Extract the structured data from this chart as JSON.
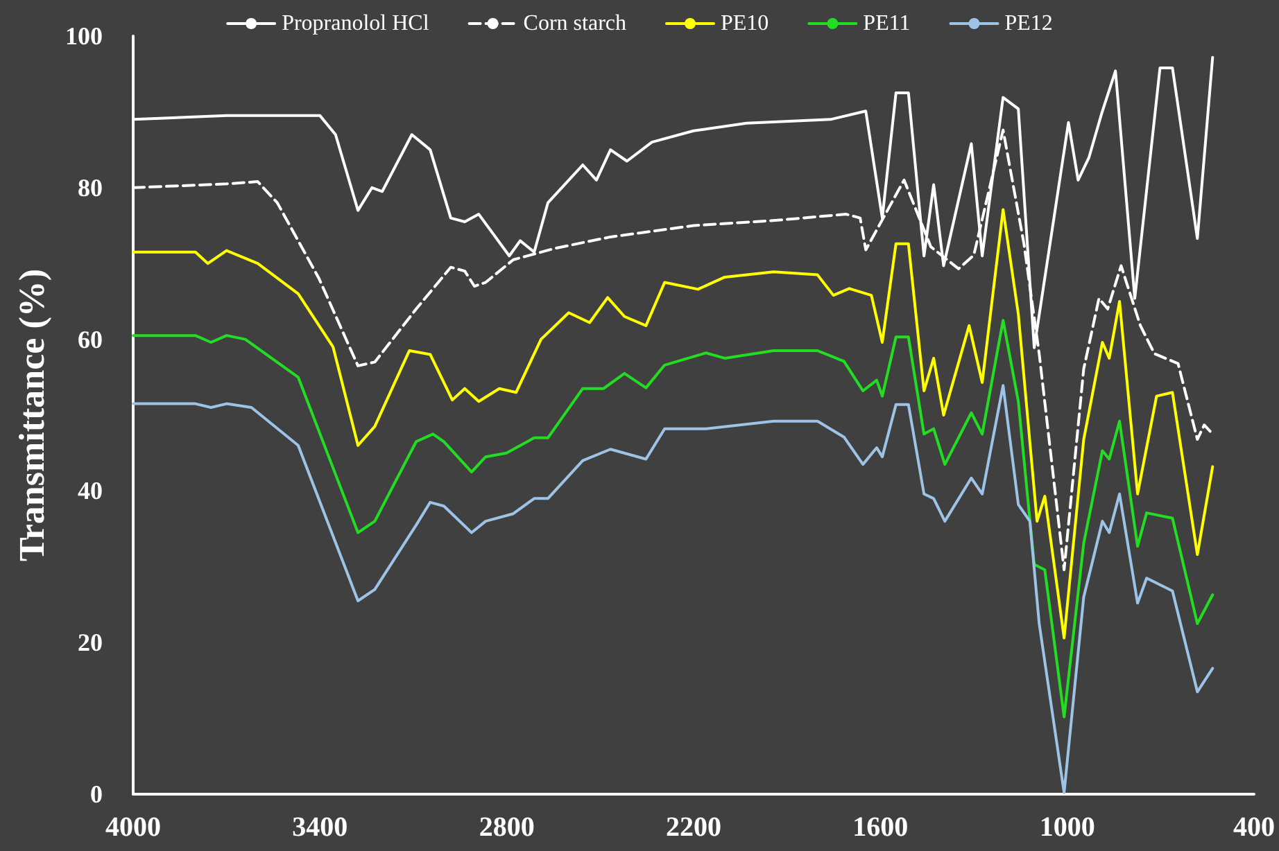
{
  "chart_data": {
    "type": "line",
    "ylabel": "Transmittance (%)",
    "xlim": [
      4000,
      400
    ],
    "xticks": [
      4000,
      3400,
      2800,
      2200,
      1600,
      1000,
      400
    ],
    "ylim": [
      0,
      100
    ],
    "yticks": [
      0,
      20,
      40,
      60,
      80,
      100
    ],
    "grid": false,
    "legend": "top",
    "marker": "none",
    "series": [
      {
        "name": "Propranolol HCl",
        "color": "#ffffff",
        "line_style": "solid",
        "x": [
          4000,
          3700,
          3400,
          3350,
          3278,
          3233,
          3200,
          3105,
          3046,
          2980,
          2935,
          2890,
          2792,
          2757,
          2712,
          2668,
          2556,
          2512,
          2467,
          2414,
          2334,
          2200,
          2030,
          1760,
          1647,
          1594,
          1550,
          1510,
          1460,
          1429,
          1397,
          1308,
          1273,
          1206,
          1157,
          1106,
          996,
          965,
          930,
          890,
          845,
          783,
          702,
          662,
          620,
          582,
          533
        ],
        "values": [
          89,
          89.5,
          89.5,
          87,
          77,
          80,
          79.5,
          87,
          85,
          76,
          75.5,
          76.5,
          71,
          73,
          71.5,
          78,
          83,
          81,
          85,
          83.5,
          86,
          87.5,
          88.5,
          89,
          90.1,
          76,
          92.5,
          92.5,
          71,
          80.4,
          69.7,
          85.8,
          71,
          91.9,
          90.4,
          58.9,
          88.6,
          81,
          84,
          89.7,
          95.4,
          65.4,
          95.8,
          95.8,
          84,
          73.3,
          97.2
        ]
      },
      {
        "name": "Corn starch",
        "color": "#ffffff",
        "line_style": "dashed",
        "x": [
          4000,
          3700,
          3600,
          3537,
          3403,
          3278,
          3224,
          3091,
          2980,
          2935,
          2904,
          2868,
          2779,
          2645,
          2467,
          2200,
          1932,
          1710,
          1665,
          1647,
          1524,
          1438,
          1349,
          1300,
          1206,
          1139,
          1090,
          1010,
          947,
          898,
          870,
          827,
          765,
          720,
          644,
          582,
          560,
          533
        ],
        "values": [
          80,
          80.5,
          80.8,
          78,
          68,
          56.5,
          57,
          64,
          69.5,
          69,
          67,
          67.5,
          70.5,
          72,
          73.5,
          75,
          75.7,
          76.5,
          76,
          71.8,
          81,
          72.2,
          69.3,
          71.1,
          87.6,
          72.6,
          58.1,
          29.6,
          56.1,
          65.4,
          64,
          69.7,
          61.8,
          58.1,
          56.8,
          46.8,
          48.7,
          47.5
        ]
      },
      {
        "name": "PE10",
        "color": "#ffff00",
        "line_style": "solid",
        "x": [
          4000,
          3800,
          3760,
          3700,
          3600,
          3470,
          3358,
          3278,
          3224,
          3113,
          3046,
          2975,
          2935,
          2890,
          2824,
          2770,
          2690,
          2601,
          2534,
          2476,
          2422,
          2353,
          2293,
          2186,
          2100,
          1943,
          1802,
          1751,
          1700,
          1629,
          1594,
          1550,
          1510,
          1460,
          1429,
          1397,
          1315,
          1273,
          1206,
          1157,
          1097,
          1072,
          1010,
          947,
          887,
          865,
          832,
          774,
          713,
          662,
          582,
          533
        ],
        "values": [
          71.5,
          71.5,
          70,
          71.7,
          70,
          66,
          59,
          46,
          48.5,
          58.5,
          58,
          52,
          53.5,
          51.8,
          53.5,
          53,
          60,
          63.5,
          62.2,
          65.5,
          63,
          61.8,
          67.5,
          66.6,
          68.2,
          68.9,
          68.5,
          65.8,
          66.7,
          65.8,
          59.6,
          72.6,
          72.6,
          53.2,
          57.5,
          50,
          61.8,
          54.3,
          77.1,
          63.3,
          36,
          39.3,
          20.6,
          46.8,
          59.6,
          57.5,
          65,
          39.6,
          52.5,
          53,
          31.6,
          43.2
        ]
      },
      {
        "name": "PE11",
        "color": "#22dd22",
        "line_style": "solid",
        "x": [
          4000,
          3800,
          3750,
          3700,
          3640,
          3470,
          3278,
          3224,
          3091,
          3037,
          3002,
          2913,
          2868,
          2801,
          2712,
          2668,
          2556,
          2489,
          2422,
          2353,
          2293,
          2160,
          2100,
          1943,
          1802,
          1717,
          1656,
          1612,
          1594,
          1550,
          1510,
          1460,
          1429,
          1393,
          1308,
          1273,
          1206,
          1157,
          1106,
          1072,
          1010,
          947,
          887,
          865,
          832,
          774,
          745,
          662,
          582,
          533
        ],
        "values": [
          60.5,
          60.5,
          59.6,
          60.5,
          60,
          55,
          34.5,
          36,
          46.5,
          47.5,
          46.5,
          42.5,
          44.5,
          45,
          47,
          47,
          53.5,
          53.5,
          55.5,
          53.6,
          56.6,
          58.2,
          57.5,
          58.5,
          58.5,
          57.1,
          53.2,
          54.6,
          52.5,
          60.3,
          60.3,
          47.5,
          48.2,
          43.5,
          50.3,
          47.5,
          62.5,
          51.8,
          30.3,
          29.6,
          10.2,
          33.1,
          45.3,
          44.2,
          49.2,
          32.7,
          37.1,
          36.4,
          22.5,
          26.3
        ]
      },
      {
        "name": "PE12",
        "color": "#9dc3e6",
        "line_style": "solid",
        "x": [
          4000,
          3800,
          3750,
          3700,
          3620,
          3470,
          3278,
          3224,
          3091,
          3046,
          3002,
          2913,
          2868,
          2779,
          2712,
          2668,
          2556,
          2467,
          2353,
          2293,
          2160,
          1943,
          1802,
          1717,
          1656,
          1612,
          1594,
          1550,
          1510,
          1460,
          1429,
          1393,
          1308,
          1273,
          1206,
          1157,
          1120,
          1090,
          1010,
          947,
          887,
          865,
          832,
          774,
          745,
          662,
          582,
          533
        ],
        "values": [
          51.5,
          51.5,
          51,
          51.5,
          51,
          46,
          25.5,
          27,
          35.5,
          38.5,
          38,
          34.5,
          36,
          37,
          39,
          39,
          44,
          45.5,
          44.2,
          48.2,
          48.2,
          49.2,
          49.2,
          47.1,
          43.5,
          45.7,
          44.5,
          51.4,
          51.4,
          39.6,
          39,
          36,
          41.7,
          39.6,
          53.9,
          38.2,
          36,
          22.5,
          0.2,
          26,
          36,
          34.5,
          39.6,
          25.2,
          28.5,
          26.8,
          13.5,
          16.6
        ]
      }
    ]
  }
}
